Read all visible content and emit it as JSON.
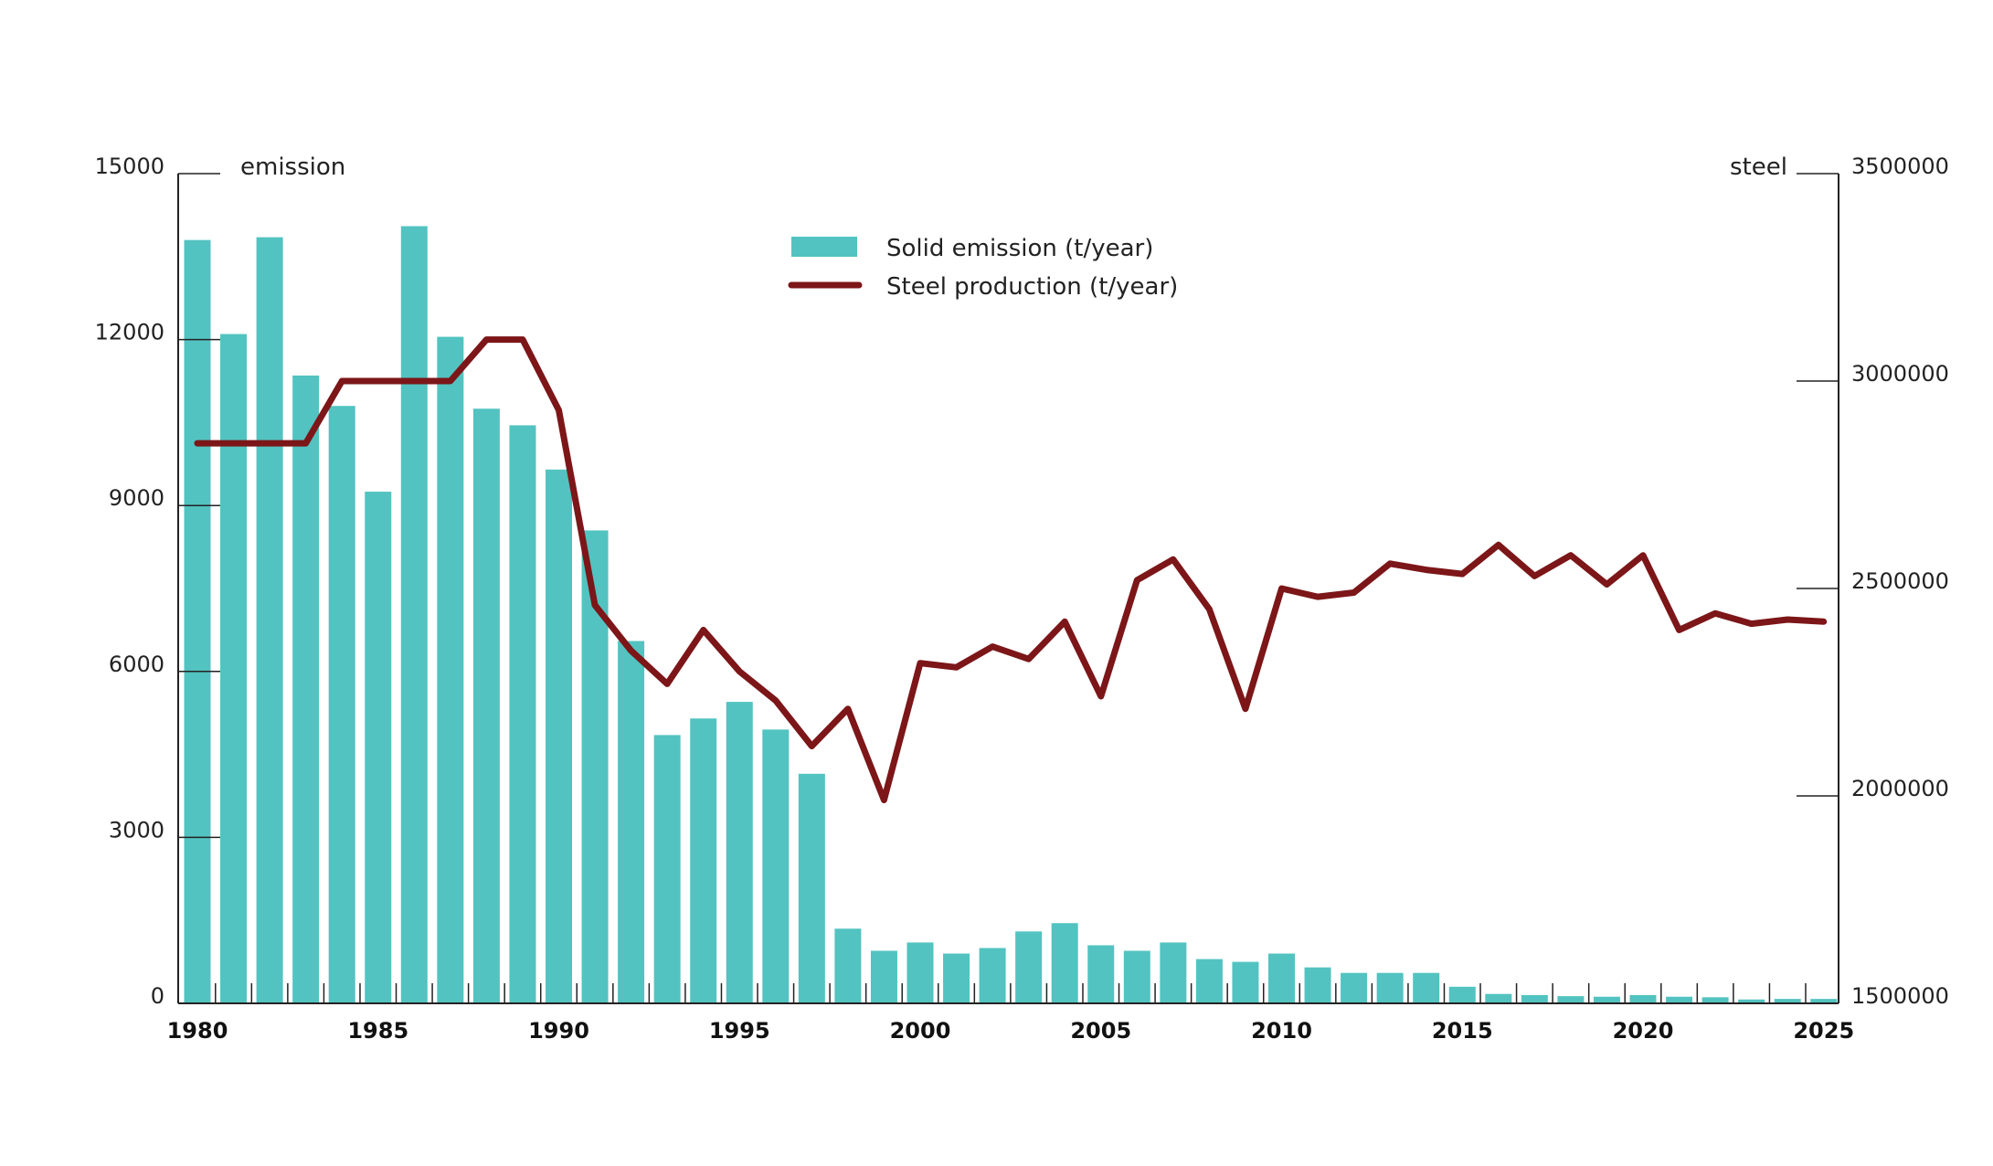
{
  "chart_data": {
    "type": "bar+line",
    "title": "",
    "colors": {
      "bars": "#52c3c0",
      "line": "#7c1618",
      "axis": "#222222"
    },
    "left_axis": {
      "label": "emission",
      "ylim": [
        0,
        15000
      ],
      "ticks": [
        0,
        3000,
        6000,
        9000,
        12000,
        15000
      ],
      "tick_labels": [
        "0",
        "3000",
        "6000",
        "9000",
        "12000",
        "15000"
      ]
    },
    "right_axis": {
      "label": "steel",
      "ylim": [
        1500000,
        3500000
      ],
      "ticks": [
        1500000,
        2000000,
        2500000,
        3000000,
        3500000
      ],
      "tick_labels": [
        "1500000",
        "2000000",
        "2500000",
        "3000000",
        "3500000"
      ]
    },
    "x_ticks": [
      1980,
      1985,
      1990,
      1995,
      2000,
      2005,
      2010,
      2015,
      2020,
      2025
    ],
    "x_tick_labels": [
      "1980",
      "1985",
      "1990",
      "1995",
      "2000",
      "2005",
      "2010",
      "2015",
      "2020",
      "2025"
    ],
    "legend": {
      "position": "top-center",
      "entries": [
        "Solid emission (t/year)",
        "Steel production (t/year)"
      ]
    },
    "grid": false,
    "x": [
      1980,
      1981,
      1982,
      1983,
      1984,
      1985,
      1986,
      1987,
      1988,
      1989,
      1990,
      1991,
      1992,
      1993,
      1994,
      1995,
      1996,
      1997,
      1998,
      1999,
      2000,
      2001,
      2002,
      2003,
      2004,
      2005,
      2006,
      2007,
      2008,
      2009,
      2010,
      2011,
      2012,
      2013,
      2014,
      2015,
      2016,
      2017,
      2018,
      2019,
      2020,
      2021,
      2022,
      2023,
      2024,
      2025
    ],
    "series": [
      {
        "name": "Solid emission (t/year)",
        "type": "bar",
        "axis": "left",
        "values": [
          13800,
          12100,
          13850,
          11350,
          10800,
          9250,
          14050,
          12050,
          10750,
          10450,
          9650,
          8550,
          6550,
          4850,
          5150,
          5450,
          4950,
          4150,
          1350,
          950,
          1100,
          900,
          1000,
          1300,
          1450,
          1050,
          950,
          1100,
          800,
          750,
          900,
          650,
          550,
          550,
          550,
          300,
          170,
          150,
          130,
          120,
          150,
          120,
          110,
          70,
          80,
          80
        ]
      },
      {
        "name": "Steel production (t/year)",
        "type": "line",
        "axis": "right",
        "values": [
          2850000,
          2850000,
          2850000,
          2850000,
          3000000,
          3000000,
          3000000,
          3000000,
          3100000,
          3100000,
          2930000,
          2460000,
          2350000,
          2270000,
          2400000,
          2300000,
          2230000,
          2120000,
          2210000,
          1990000,
          2320000,
          2310000,
          2360000,
          2330000,
          2420000,
          2240000,
          2520000,
          2570000,
          2450000,
          2210000,
          2500000,
          2480000,
          2490000,
          2560000,
          2545000,
          2535000,
          2605000,
          2530000,
          2580000,
          2510000,
          2580000,
          2400000,
          2440000,
          2415000,
          2425000,
          2420000
        ]
      }
    ]
  }
}
